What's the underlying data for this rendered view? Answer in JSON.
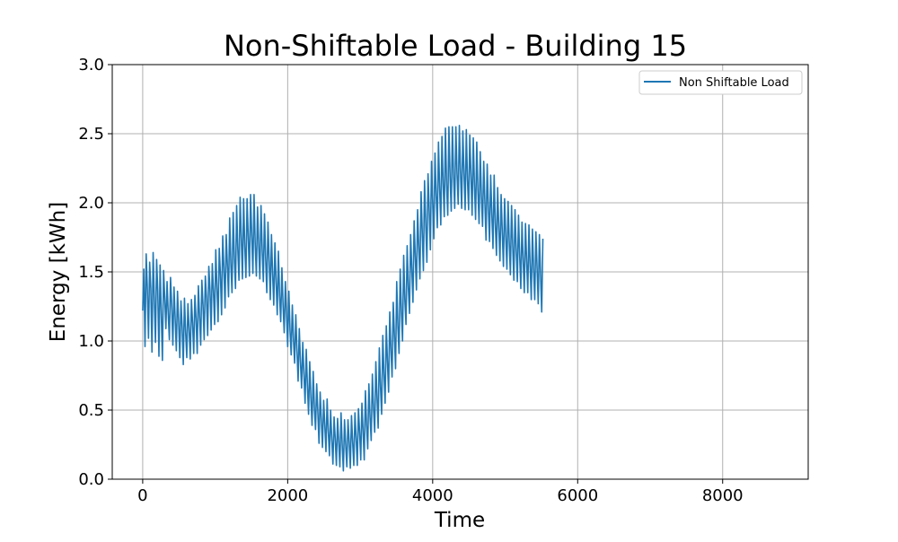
{
  "colors": {
    "series": "#1f77b4",
    "grid": "#b0b0b0",
    "axis": "#000000",
    "background": "#ffffff",
    "legend_border": "#cccccc"
  },
  "chart_data": {
    "type": "line",
    "title": "Non-Shiftable Load - Building 15",
    "xlabel": "Time",
    "ylabel": "Energy [kWh]",
    "xlim": [
      -420,
      9180
    ],
    "ylim": [
      0,
      3
    ],
    "xticks": [
      0,
      2000,
      4000,
      6000,
      8000
    ],
    "xtick_labels": [
      "0",
      "2000",
      "4000",
      "6000",
      "8000"
    ],
    "yticks": [
      0,
      0.5,
      1,
      1.5,
      2,
      2.5,
      3
    ],
    "ytick_labels": [
      "0.0",
      "0.5",
      "1.0",
      "1.5",
      "2.0",
      "2.5",
      "3.0"
    ],
    "grid": true,
    "legend_position": "top-right",
    "series": [
      {
        "name": "Non Shiftable Load",
        "x_start": 0,
        "x_step": 16,
        "values": [
          1.22,
          1.52,
          0.96,
          1.63,
          1.38,
          1.02,
          1.57,
          1.38,
          0.92,
          1.64,
          1.31,
          0.99,
          1.59,
          1.36,
          0.89,
          1.55,
          1.21,
          0.86,
          1.51,
          1.31,
          1.09,
          1.43,
          1.2,
          1.01,
          1.46,
          1.26,
          0.97,
          1.39,
          1.16,
          0.93,
          1.36,
          1.14,
          0.88,
          1.29,
          1.1,
          0.83,
          1.31,
          1.07,
          0.88,
          1.27,
          1.09,
          0.87,
          1.3,
          1.13,
          0.91,
          1.33,
          1.16,
          0.91,
          1.4,
          1.18,
          0.97,
          1.44,
          1.26,
          1.01,
          1.47,
          1.31,
          1.04,
          1.54,
          1.37,
          1.08,
          1.56,
          1.36,
          1.12,
          1.66,
          1.39,
          1.14,
          1.67,
          1.48,
          1.19,
          1.76,
          1.53,
          1.24,
          1.77,
          1.55,
          1.32,
          1.89,
          1.56,
          1.35,
          1.93,
          1.6,
          1.38,
          1.98,
          1.67,
          1.44,
          2.04,
          1.75,
          1.45,
          2.03,
          1.69,
          1.46,
          2.03,
          1.75,
          1.47,
          2.06,
          1.77,
          1.49,
          2.06,
          1.7,
          1.47,
          1.97,
          1.7,
          1.45,
          1.98,
          1.66,
          1.43,
          1.92,
          1.6,
          1.35,
          1.86,
          1.59,
          1.3,
          1.77,
          1.49,
          1.26,
          1.71,
          1.43,
          1.19,
          1.65,
          1.33,
          1.14,
          1.53,
          1.26,
          1.06,
          1.43,
          1.2,
          0.96,
          1.36,
          1.08,
          0.9,
          1.26,
          1.01,
          0.84,
          1.19,
          0.93,
          0.71,
          1.09,
          0.85,
          0.66,
          0.99,
          0.76,
          0.55,
          0.94,
          0.68,
          0.47,
          0.85,
          0.59,
          0.39,
          0.78,
          0.52,
          0.36,
          0.69,
          0.49,
          0.26,
          0.63,
          0.43,
          0.23,
          0.57,
          0.39,
          0.2,
          0.58,
          0.35,
          0.17,
          0.5,
          0.29,
          0.11,
          0.45,
          0.29,
          0.1,
          0.44,
          0.27,
          0.09,
          0.48,
          0.25,
          0.06,
          0.43,
          0.25,
          0.09,
          0.43,
          0.27,
          0.08,
          0.46,
          0.27,
          0.1,
          0.48,
          0.3,
          0.1,
          0.51,
          0.34,
          0.14,
          0.55,
          0.35,
          0.14,
          0.64,
          0.39,
          0.22,
          0.69,
          0.45,
          0.28,
          0.76,
          0.51,
          0.34,
          0.85,
          0.59,
          0.37,
          0.95,
          0.67,
          0.47,
          1.04,
          0.76,
          0.55,
          1.11,
          0.85,
          0.63,
          1.21,
          0.94,
          0.74,
          1.28,
          1.04,
          0.8,
          1.43,
          1.11,
          0.91,
          1.52,
          1.22,
          1.0,
          1.62,
          1.3,
          1.12,
          1.69,
          1.39,
          1.2,
          1.77,
          1.52,
          1.28,
          1.87,
          1.61,
          1.37,
          1.95,
          1.68,
          1.45,
          2.08,
          1.79,
          1.51,
          2.16,
          1.86,
          1.57,
          2.21,
          1.95,
          1.66,
          2.3,
          2.01,
          1.74,
          2.36,
          2.06,
          1.82,
          2.44,
          2.11,
          1.84,
          2.48,
          2.14,
          1.9,
          2.54,
          2.13,
          1.91,
          2.55,
          2.19,
          1.94,
          2.55,
          2.2,
          1.96,
          2.55,
          2.21,
          1.99,
          2.56,
          2.22,
          1.96,
          2.52,
          2.22,
          1.95,
          2.53,
          2.17,
          1.95,
          2.49,
          2.2,
          1.91,
          2.47,
          2.13,
          1.88,
          2.44,
          2.09,
          1.85,
          2.37,
          2.05,
          1.83,
          2.3,
          2.01,
          1.73,
          2.28,
          1.97,
          1.72,
          2.2,
          1.92,
          1.67,
          2.2,
          1.85,
          1.62,
          2.11,
          1.82,
          1.58,
          2.06,
          1.79,
          1.54,
          2.03,
          1.76,
          1.52,
          2.01,
          1.72,
          1.48,
          1.98,
          1.69,
          1.44,
          1.95,
          1.66,
          1.43,
          1.91,
          1.62,
          1.38,
          1.86,
          1.59,
          1.35,
          1.85,
          1.58,
          1.35,
          1.84,
          1.55,
          1.3,
          1.81,
          1.52,
          1.3,
          1.79,
          1.53,
          1.27,
          1.77,
          1.48,
          1.21,
          1.74
        ]
      }
    ]
  }
}
